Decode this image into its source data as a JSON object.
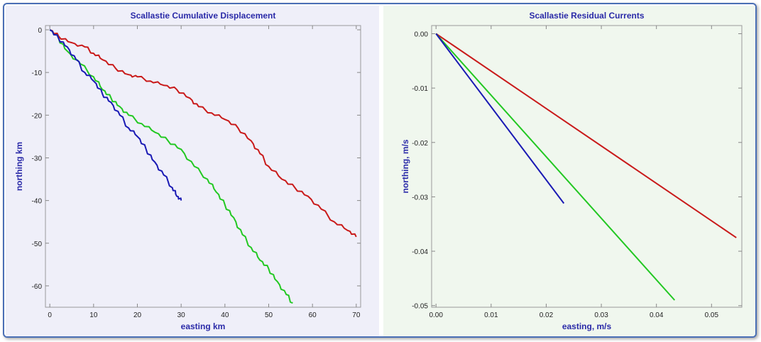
{
  "chart_data": [
    {
      "type": "line",
      "title": "Scallastie Cumulative Displacement",
      "xlabel": "easting km",
      "ylabel": "northing km",
      "xlim": [
        -1,
        71
      ],
      "ylim": [
        -65,
        1
      ],
      "xticks": [
        0,
        10,
        20,
        30,
        40,
        50,
        60,
        70
      ],
      "yticks": [
        0,
        -10,
        -20,
        -30,
        -40,
        -50,
        -60
      ],
      "grid": false,
      "series": [
        {
          "color": "#c91a1a",
          "x": [
            0,
            2,
            5,
            8,
            10,
            12,
            15,
            18,
            20,
            23,
            26,
            29,
            32,
            34,
            37,
            40,
            43,
            46,
            48,
            50,
            53,
            56,
            59,
            62,
            65,
            68,
            70
          ],
          "y": [
            0,
            -1.5,
            -3,
            -4,
            -5.5,
            -7,
            -9,
            -10.5,
            -11,
            -12,
            -13,
            -14,
            -16,
            -18,
            -19.5,
            -21,
            -23,
            -26,
            -29,
            -32,
            -35,
            -37,
            -39,
            -42,
            -45,
            -47,
            -48.5
          ]
        },
        {
          "color": "#22c822",
          "x": [
            0,
            2,
            4,
            7,
            10,
            12,
            14,
            16,
            18,
            21,
            24,
            27,
            30,
            33,
            36,
            38,
            40,
            42,
            44,
            46,
            48,
            50,
            52,
            54,
            55.5
          ],
          "y": [
            0,
            -2,
            -5,
            -8,
            -11,
            -14,
            -16,
            -18,
            -20,
            -22,
            -24,
            -26,
            -28,
            -32,
            -35,
            -38,
            -41,
            -44,
            -48,
            -51,
            -54,
            -56,
            -59,
            -62,
            -64
          ]
        },
        {
          "color": "#1a1ab4",
          "x": [
            0,
            2,
            4,
            6,
            8,
            10,
            12,
            14,
            16,
            18,
            20,
            22,
            24,
            26,
            28,
            29,
            30
          ],
          "y": [
            0,
            -2,
            -4,
            -7,
            -10,
            -12,
            -15,
            -17,
            -20,
            -23,
            -25,
            -28,
            -31,
            -34,
            -37,
            -39,
            -40
          ]
        }
      ]
    },
    {
      "type": "line",
      "title": "Scallastie Residual Currents",
      "xlabel": "easting, m/s",
      "ylabel": "northing, m/s",
      "xlim": [
        -0.0008,
        0.0555
      ],
      "ylim": [
        -0.0503,
        0.0015
      ],
      "xticks": [
        "0.00",
        "0.01",
        "0.02",
        "0.03",
        "0.04",
        "0.05"
      ],
      "yticks": [
        "0.00",
        "-0.01",
        "-0.02",
        "-0.03",
        "-0.04",
        "-0.05"
      ],
      "grid": false,
      "series": [
        {
          "color": "#c91a1a",
          "x": [
            0,
            0.0545
          ],
          "y": [
            0,
            -0.0375
          ]
        },
        {
          "color": "#22c822",
          "x": [
            0,
            0.0433
          ],
          "y": [
            0,
            -0.049
          ]
        },
        {
          "color": "#1a1ab4",
          "x": [
            0,
            0.0232
          ],
          "y": [
            0,
            -0.0312
          ]
        }
      ]
    }
  ]
}
